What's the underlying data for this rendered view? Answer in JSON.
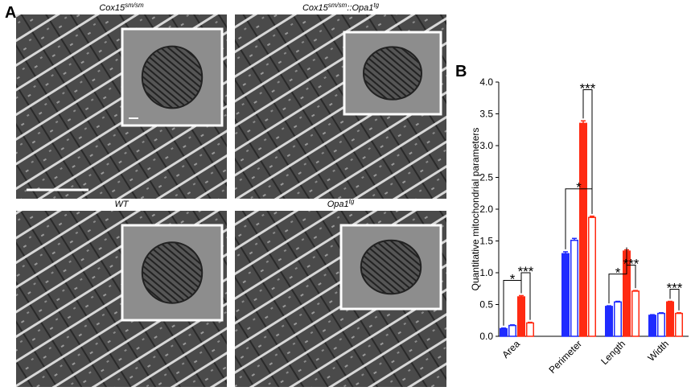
{
  "panel_a": {
    "label": "A",
    "images": [
      {
        "title": [
          {
            "text": "Cox15",
            "sup": false
          },
          {
            "text": "sm/sm",
            "sup": true
          }
        ]
      },
      {
        "title": [
          {
            "text": "Cox15",
            "sup": false
          },
          {
            "text": "sm/sm",
            "sup": true
          },
          {
            "text": "::Opa1",
            "sup": false
          },
          {
            "text": "tg",
            "sup": true
          }
        ]
      },
      {
        "title": [
          {
            "text": "WT",
            "sup": false
          }
        ]
      },
      {
        "title": [
          {
            "text": "Opa1",
            "sup": false
          },
          {
            "text": "tg",
            "sup": true
          }
        ]
      }
    ]
  },
  "chart_data": {
    "type": "bar",
    "panel_label": "B",
    "ylabel": "Quantitative mitochondrial parameters",
    "categories": [
      "Area",
      "Perimeter",
      "Length",
      "Width"
    ],
    "series": [
      {
        "color": "#1f2bff",
        "filled": true,
        "values": [
          0.12,
          1.3,
          0.47,
          0.33
        ],
        "errors": [
          0.01,
          0.03,
          0.01,
          0.01
        ]
      },
      {
        "color": "#1f2bff",
        "filled": false,
        "values": [
          0.17,
          1.51,
          0.54,
          0.36
        ],
        "errors": [
          0.01,
          0.03,
          0.01,
          0.01
        ]
      },
      {
        "color": "#ff2a12",
        "filled": true,
        "values": [
          0.62,
          3.35,
          1.34,
          0.54
        ],
        "errors": [
          0.02,
          0.04,
          0.02,
          0.01
        ]
      },
      {
        "color": "#ff2a12",
        "filled": false,
        "values": [
          0.21,
          1.87,
          0.71,
          0.36
        ],
        "errors": [
          0.01,
          0.02,
          0.01,
          0.01
        ]
      }
    ],
    "ylim": [
      0,
      4
    ],
    "yticks": [
      {
        "value": 0,
        "label": "0.0"
      },
      {
        "value": 0.5,
        "label": "0.5"
      },
      {
        "value": 1,
        "label": "1.0"
      },
      {
        "value": 1.5,
        "label": "1.5"
      },
      {
        "value": 2,
        "label": "2.0"
      },
      {
        "value": 2.5,
        "label": "2.5"
      },
      {
        "value": 3,
        "label": "3.0"
      },
      {
        "value": 3.5,
        "label": "3.5"
      },
      {
        "value": 4,
        "label": "4.0"
      }
    ],
    "annotations": [
      "*",
      "***",
      "*",
      "***",
      "*",
      "***",
      "***"
    ]
  }
}
